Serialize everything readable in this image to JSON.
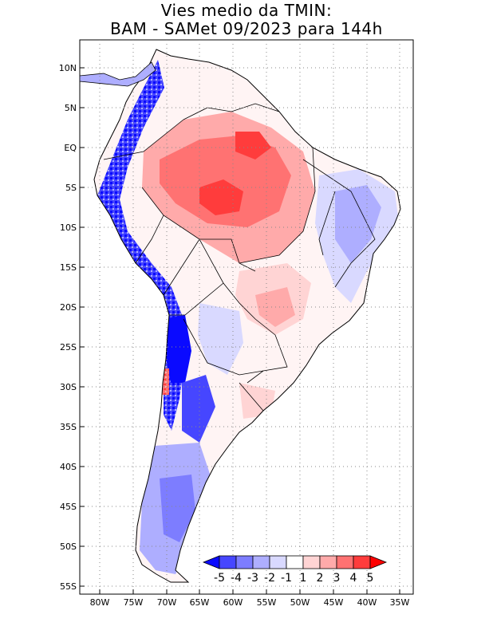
{
  "title": {
    "line1": "Vies medio da TMIN:",
    "line2": "BAM - SAMet 09/2023  para 144h"
  },
  "map": {
    "region": "South America",
    "lon_range": [
      -83,
      -34
    ],
    "lat_range": [
      -56,
      13
    ],
    "grid": "dotted"
  },
  "axes": {
    "y_ticks": [
      "10N",
      "5N",
      "EQ",
      "5S",
      "10S",
      "15S",
      "20S",
      "25S",
      "30S",
      "35S",
      "40S",
      "45S",
      "50S",
      "55S"
    ],
    "x_ticks": [
      "80W",
      "75W",
      "70W",
      "65W",
      "60W",
      "55W",
      "50W",
      "45W",
      "40W",
      "35W"
    ]
  },
  "colorbar": {
    "labels": [
      "-5",
      "-4",
      "-3",
      "-2",
      "-1",
      "1",
      "2",
      "3",
      "4",
      "5"
    ],
    "colors": [
      "#0a0aff",
      "#4646ff",
      "#7d7dff",
      "#aeaeff",
      "#d9d9ff",
      "#ffffff",
      "#ffd4d4",
      "#ffaaaa",
      "#ff7272",
      "#ff3c3c",
      "#ff0000"
    ]
  },
  "regions": {
    "amazon_warm": "Amazon basin +2 to +4 warm bias",
    "andes_cold": "Andes -3 to -5 cold bias",
    "patagonia_cold": "Patagonia -1 to -3 cold bias",
    "northeast_brazil_cold": "NE Brazil -1 to -3 cold bias"
  }
}
